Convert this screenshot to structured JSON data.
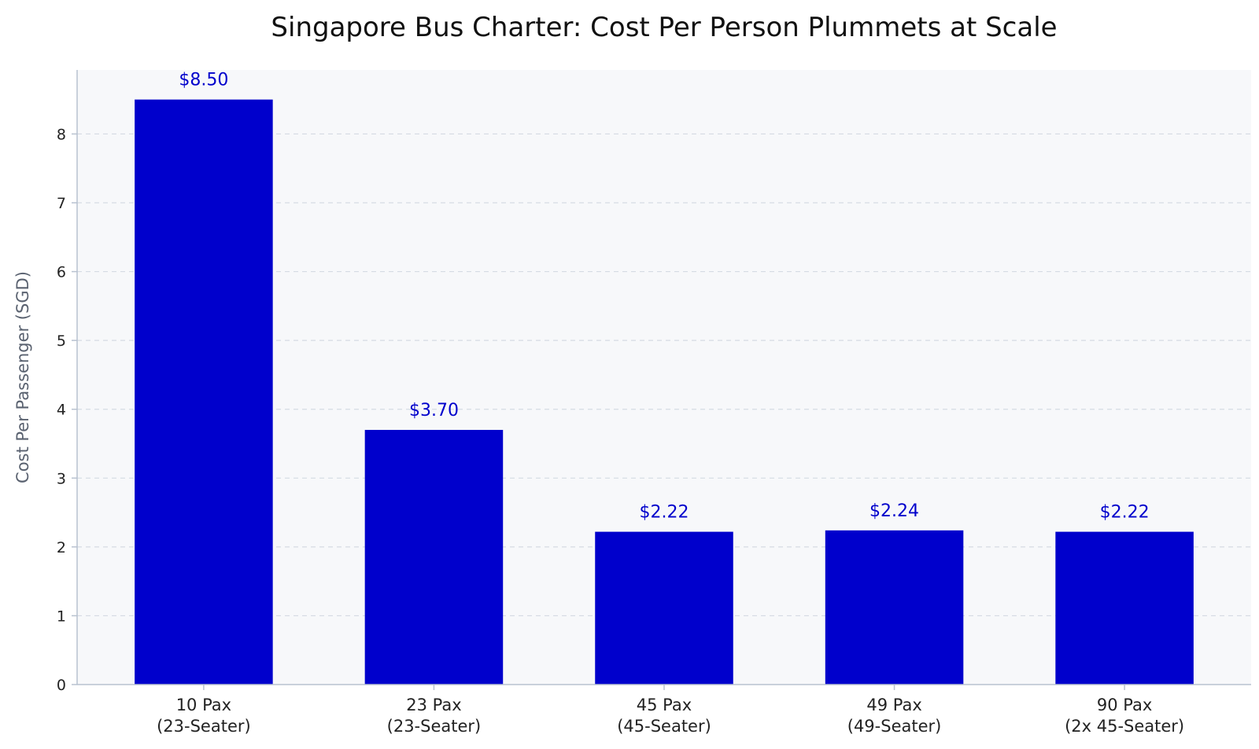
{
  "chart_data": {
    "type": "bar",
    "title": "Singapore Bus Charter: Cost Per Person Plummets at Scale",
    "xlabel": "",
    "ylabel": "Cost Per Passenger (SGD)",
    "categories": [
      [
        "10 Pax",
        "(23-Seater)"
      ],
      [
        "23 Pax",
        "(23-Seater)"
      ],
      [
        "45 Pax",
        "(45-Seater)"
      ],
      [
        "49 Pax",
        "(49-Seater)"
      ],
      [
        "90 Pax",
        "(2x 45-Seater)"
      ]
    ],
    "values": [
      8.5,
      3.7,
      2.22,
      2.24,
      2.22
    ],
    "data_labels": [
      "$8.50",
      "$3.70",
      "$2.22",
      "$2.24",
      "$2.22"
    ],
    "yticks": [
      0,
      1,
      2,
      3,
      4,
      5,
      6,
      7,
      8
    ],
    "ylim": [
      0,
      8.93
    ],
    "grid": "horizontal dashed",
    "colors": {
      "bar": "#0000cc",
      "data_label": "#0000cc",
      "plot_background": "#f7f8fa",
      "grid": "#d5dbe3",
      "axis": "#b8c2d0"
    }
  }
}
